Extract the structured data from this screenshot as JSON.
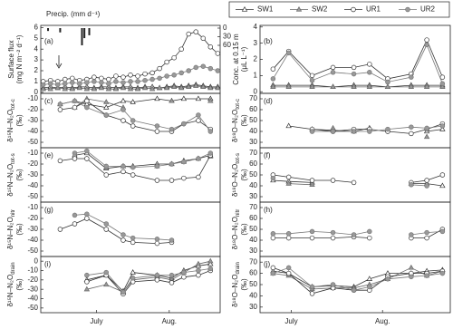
{
  "chart_data": [
    {
      "type": "line",
      "label": "(a)",
      "ylabel": [
        "Surface flux",
        "(mg N m⁻² d⁻¹)"
      ],
      "legend": "upper right",
      "x": [
        0,
        3,
        6,
        9,
        12,
        15,
        18,
        21,
        24,
        27,
        30,
        33,
        36,
        39,
        42,
        45,
        48,
        51,
        54,
        57,
        60,
        63,
        66,
        69,
        72
      ],
      "xlim": [
        -1,
        73
      ],
      "ylim": [
        -0.1,
        6.2
      ],
      "yticks": [
        0,
        1,
        2,
        3,
        4,
        5,
        6
      ],
      "series": [
        {
          "name": "SW1",
          "color": "#333333",
          "marker": "triangle",
          "fill": "#ffffff",
          "values": [
            0.4,
            0.5,
            0.4,
            0.5,
            0.4,
            0.5,
            0.5,
            0.4,
            0.5,
            0.5,
            0.4,
            0.5,
            0.5,
            0.4,
            0.5,
            0.5,
            0.4,
            0.5,
            0.6,
            0.5,
            0.6,
            0.7,
            0.6,
            0.5,
            0.5
          ]
        },
        {
          "name": "SW2",
          "color": "#666666",
          "marker": "triangle",
          "fill": "#999999",
          "values": [
            0.3,
            0.3,
            0.4,
            0.3,
            0.3,
            0.4,
            0.3,
            0.3,
            0.4,
            0.3,
            0.3,
            0.4,
            0.3,
            0.3,
            0.4,
            0.3,
            0.4,
            0.4,
            0.5,
            0.4,
            0.5,
            0.6,
            0.5,
            0.4,
            0.4
          ]
        },
        {
          "name": "UR1",
          "color": "#333333",
          "marker": "circle",
          "fill": "#ffffff",
          "values": [
            1.0,
            1.1,
            1.0,
            1.2,
            1.3,
            1.1,
            1.2,
            1.4,
            1.3,
            1.2,
            1.5,
            1.4,
            1.6,
            1.5,
            1.7,
            1.8,
            2.2,
            2.8,
            3.2,
            4.0,
            5.4,
            5.6,
            5.0,
            4.2,
            3.6
          ]
        },
        {
          "name": "UR2",
          "color": "#777777",
          "marker": "circle",
          "fill": "#999999",
          "values": [
            0.7,
            0.8,
            0.7,
            0.8,
            0.9,
            0.8,
            0.9,
            1.0,
            0.9,
            0.8,
            1.0,
            0.9,
            1.0,
            1.0,
            1.1,
            1.2,
            1.3,
            1.5,
            1.6,
            1.8,
            2.0,
            2.3,
            2.4,
            2.2,
            2.0
          ]
        }
      ],
      "bars": {
        "name": "Precip. (mm d⁻¹)",
        "color": "#222222",
        "axis": "y2",
        "x": [
          2,
          7,
          16,
          17,
          19
        ],
        "values": [
          10,
          15,
          60,
          35,
          25
        ]
      },
      "y2lim": [
        60,
        0
      ],
      "y2ticks": [
        0,
        30,
        60
      ]
    },
    {
      "type": "line",
      "label": "(b)",
      "ylabel": [
        "Conc. at 0.15 m",
        "(μL L⁻¹)"
      ],
      "x": [
        5,
        11,
        20,
        28,
        36,
        42,
        49,
        58,
        64,
        70
      ],
      "xlim": [
        0,
        73
      ],
      "ylim": [
        -0.1,
        4.1
      ],
      "yticks": [
        0,
        1,
        2,
        3,
        4
      ],
      "series": [
        {
          "values": [
            0.4,
            0.4,
            0.4,
            0.3,
            0.4,
            0.4,
            0.3,
            0.4,
            0.4,
            0.4
          ]
        },
        {
          "values": [
            0.3,
            0.3,
            0.3,
            0.3,
            0.3,
            0.3,
            0.3,
            0.3,
            0.3,
            0.3
          ]
        },
        {
          "values": [
            1.4,
            2.5,
            1.0,
            1.5,
            1.5,
            1.7,
            0.8,
            1.1,
            3.2,
            0.9
          ]
        },
        {
          "values": [
            0.8,
            2.4,
            0.7,
            1.2,
            1.1,
            1.2,
            0.6,
            0.9,
            2.9,
            0.5
          ]
        }
      ]
    },
    {
      "type": "line",
      "label": "(c)",
      "ylabel": {
        "main": "δ¹⁵N–N₂O",
        "sub": "tot-c",
        "unit": "(‰)"
      },
      "x": [
        7,
        13,
        18,
        26,
        33,
        37,
        47,
        53,
        58,
        64,
        69
      ],
      "xlim": [
        -1,
        73
      ],
      "ylim": [
        -55,
        -5
      ],
      "yticks": [
        -10,
        -20,
        -30,
        -40,
        -50
      ],
      "series": [
        {
          "values": [
            -15,
            -12,
            -15,
            -18,
            -12,
            -13,
            -10,
            -12,
            -10,
            -10,
            -10
          ]
        },
        {
          "values": [
            null,
            -18,
            -10,
            -13,
            -18,
            null,
            null,
            -12,
            null,
            null,
            -12
          ]
        },
        {
          "values": [
            -20,
            -18,
            -12,
            -25,
            -30,
            -35,
            -40,
            -40,
            -33,
            -30,
            -38
          ]
        },
        {
          "values": [
            -15,
            -12,
            -18,
            -25,
            -20,
            -30,
            -35,
            -38,
            -33,
            -25,
            -40
          ]
        }
      ]
    },
    {
      "type": "line",
      "label": "(d)",
      "ylabel": {
        "main": "δ¹⁸O–N₂O",
        "sub": "tot-c",
        "unit": "(‰)"
      },
      "x": [
        5,
        11,
        20,
        28,
        36,
        42,
        49,
        58,
        64,
        70
      ],
      "xlim": [
        0,
        73
      ],
      "ylim": [
        25,
        75
      ],
      "yticks": [
        70,
        60,
        50,
        40,
        30
      ],
      "series": [
        {
          "values": [
            null,
            45,
            42,
            41,
            40,
            43,
            null,
            null,
            40,
            42
          ]
        },
        {
          "values": [
            null,
            null,
            null,
            43,
            null,
            null,
            null,
            null,
            35,
            null
          ]
        },
        {
          "values": [
            null,
            null,
            42,
            40,
            42,
            42,
            40,
            38,
            42,
            47
          ]
        },
        {
          "values": [
            null,
            null,
            40,
            40,
            40,
            40,
            42,
            44,
            43,
            45
          ]
        }
      ]
    },
    {
      "type": "line",
      "label": "(e)",
      "ylabel": {
        "main": "δ¹⁵N–N₂O",
        "sub": "tot-s",
        "unit": "(‰)"
      },
      "x": [
        7,
        13,
        18,
        26,
        33,
        37,
        47,
        53,
        58,
        64,
        69
      ],
      "xlim": [
        -1,
        73
      ],
      "ylim": [
        -55,
        -5
      ],
      "yticks": [
        -10,
        -20,
        -30,
        -40,
        -50
      ],
      "series": [
        {
          "values": [
            null,
            -12,
            -10,
            -24,
            -22,
            -22,
            -20,
            -20,
            -17,
            -15,
            -12
          ]
        },
        {
          "values": [
            null,
            null,
            null,
            -23,
            null,
            null,
            -22,
            null,
            -18,
            null,
            -13
          ]
        },
        {
          "values": [
            -17,
            -15,
            -15,
            -30,
            -27,
            -30,
            -35,
            -35,
            -33,
            -32,
            -12
          ]
        },
        {
          "values": [
            null,
            -10,
            -8,
            -22,
            -22,
            -23,
            -22,
            -20,
            -18,
            -15,
            -10
          ]
        }
      ]
    },
    {
      "type": "line",
      "label": "(f)",
      "ylabel": {
        "main": "δ¹⁸O–N₂O",
        "sub": "tot-s",
        "unit": "(‰)"
      },
      "x": [
        5,
        11,
        20,
        28,
        36,
        42,
        49,
        58,
        64,
        70
      ],
      "xlim": [
        0,
        73
      ],
      "ylim": [
        25,
        75
      ],
      "yticks": [
        70,
        60,
        50,
        40,
        30
      ],
      "series": [
        {
          "values": [
            45,
            44,
            43,
            null,
            null,
            null,
            null,
            42,
            42,
            40
          ]
        },
        {
          "values": [
            null,
            42,
            41,
            null,
            null,
            null,
            null,
            null,
            null,
            null
          ]
        },
        {
          "values": [
            50,
            48,
            45,
            45,
            43,
            null,
            null,
            43,
            45,
            50
          ]
        },
        {
          "values": [
            47,
            null,
            null,
            null,
            null,
            null,
            null,
            41,
            40,
            null
          ]
        }
      ]
    },
    {
      "type": "line",
      "label": "(g)",
      "ylabel": {
        "main": "δ¹⁵N–N₂O",
        "sub": "nitr",
        "unit": "(‰)"
      },
      "x": [
        7,
        13,
        18,
        26,
        33,
        37,
        47,
        53,
        58,
        64,
        69
      ],
      "xlim": [
        -1,
        73
      ],
      "ylim": [
        -55,
        -5
      ],
      "yticks": [
        -10,
        -20,
        -30,
        -40,
        -50
      ],
      "series": [
        {
          "values": [
            null,
            null,
            null,
            null,
            null,
            null,
            null,
            null,
            null,
            null,
            null
          ]
        },
        {
          "values": [
            null,
            null,
            null,
            null,
            null,
            null,
            null,
            null,
            null,
            null,
            null
          ]
        },
        {
          "values": [
            -30,
            -25,
            -20,
            -30,
            -40,
            -42,
            -43,
            -42,
            null,
            null,
            null
          ]
        },
        {
          "values": [
            null,
            -17,
            -16,
            -25,
            -35,
            -38,
            -39,
            -40,
            null,
            null,
            null
          ]
        }
      ]
    },
    {
      "type": "line",
      "label": "(h)",
      "ylabel": {
        "main": "δ¹⁸O–N₂O",
        "sub": "nitr",
        "unit": "(‰)"
      },
      "x": [
        5,
        11,
        20,
        28,
        36,
        42,
        49,
        58,
        64,
        70
      ],
      "xlim": [
        0,
        73
      ],
      "ylim": [
        25,
        75
      ],
      "yticks": [
        70,
        60,
        50,
        40,
        30
      ],
      "series": [
        {
          "values": [
            null,
            null,
            null,
            null,
            null,
            null,
            null,
            null,
            null,
            null
          ]
        },
        {
          "values": [
            null,
            null,
            null,
            null,
            null,
            null,
            null,
            null,
            null,
            null
          ]
        },
        {
          "values": [
            42,
            42,
            42,
            42,
            43,
            42,
            null,
            42,
            42,
            50
          ]
        },
        {
          "values": [
            46,
            46,
            48,
            47,
            45,
            48,
            null,
            45,
            47,
            48
          ]
        }
      ]
    },
    {
      "type": "line",
      "label": "(i)",
      "ylabel": {
        "main": "δ¹⁵N–N₂O",
        "sub": "drain",
        "unit": "(‰)"
      },
      "x": [
        7,
        13,
        18,
        26,
        33,
        37,
        47,
        53,
        58,
        64,
        69
      ],
      "xlim": [
        -1,
        73
      ],
      "ylim": [
        -55,
        5
      ],
      "yticks": [
        0,
        -10,
        -20,
        -30,
        -40,
        -50
      ],
      "xticks": [
        {
          "value": 22,
          "label": "July"
        },
        {
          "value": 52,
          "label": "Aug."
        }
      ],
      "series": [
        {
          "values": [
            null,
            null,
            -20,
            -15,
            -32,
            -12,
            -15,
            -18,
            -10,
            -5,
            -3
          ]
        },
        {
          "values": [
            null,
            null,
            -30,
            -25,
            -33,
            -20,
            -17,
            -20,
            -12,
            -3,
            0
          ]
        },
        {
          "values": [
            null,
            null,
            -22,
            -15,
            -35,
            -22,
            -20,
            -23,
            -17,
            -15,
            -10
          ]
        },
        {
          "values": [
            null,
            null,
            -15,
            -12,
            -33,
            -18,
            -15,
            -15,
            -12,
            -10,
            -8
          ]
        }
      ]
    },
    {
      "type": "line",
      "label": "(j)",
      "ylabel": {
        "main": "δ¹⁸O–N₂O",
        "sub": "drain",
        "unit": "(‰)"
      },
      "x": [
        5,
        11,
        20,
        28,
        36,
        42,
        49,
        58,
        64,
        70
      ],
      "xlim": [
        0,
        73
      ],
      "ylim": [
        25,
        75
      ],
      "yticks": [
        70,
        60,
        50,
        40,
        30
      ],
      "xticks": [
        {
          "value": 12,
          "label": "July"
        },
        {
          "value": 47,
          "label": "Aug."
        }
      ],
      "series": [
        {
          "values": [
            62,
            60,
            48,
            49,
            48,
            55,
            60,
            60,
            62,
            63
          ]
        },
        {
          "values": [
            60,
            58,
            46,
            47,
            47,
            50,
            55,
            65,
            58,
            62
          ]
        },
        {
          "values": [
            65,
            60,
            42,
            47,
            45,
            45,
            57,
            60,
            60,
            62
          ]
        },
        {
          "values": [
            60,
            65,
            48,
            50,
            45,
            48,
            55,
            57,
            58,
            60
          ]
        }
      ]
    }
  ]
}
